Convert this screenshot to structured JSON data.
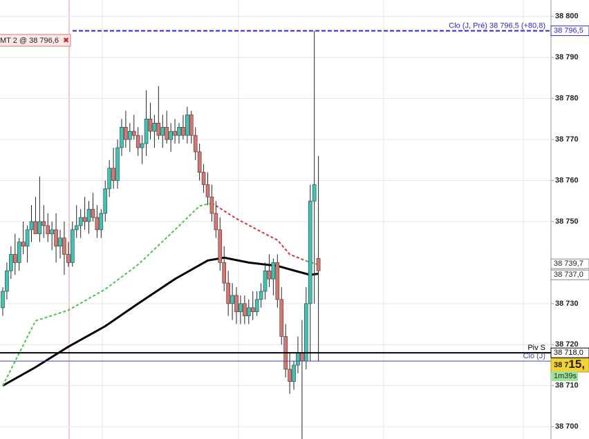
{
  "chart_data": {
    "type": "candlestick",
    "ylim": [
      38697,
      38804
    ],
    "yticks": [
      {
        "value": 38700,
        "label": "38 700"
      },
      {
        "value": 38710,
        "label": "38 710"
      },
      {
        "value": 38720,
        "label": "38 720"
      },
      {
        "value": 38730,
        "label": "38 730"
      },
      {
        "value": 38750,
        "label": "38 750"
      },
      {
        "value": 38760,
        "label": "38 760"
      },
      {
        "value": 38770,
        "label": "38 770"
      },
      {
        "value": 38780,
        "label": "38 780"
      },
      {
        "value": 38790,
        "label": "38 790"
      },
      {
        "value": 38800,
        "label": "38 800"
      }
    ],
    "grid": true,
    "up_color": "#3cc4b4",
    "down_color": "#d9756f",
    "candles": [
      [
        38729,
        38734,
        38727,
        38733
      ],
      [
        38733,
        38740,
        38731,
        38738
      ],
      [
        38738,
        38744,
        38736,
        38742
      ],
      [
        38742,
        38747,
        38737,
        38740
      ],
      [
        38740,
        38746,
        38738,
        38745
      ],
      [
        38745,
        38750,
        38742,
        38744
      ],
      [
        38744,
        38749,
        38740,
        38748
      ],
      [
        38748,
        38754,
        38745,
        38750
      ],
      [
        38750,
        38756,
        38747,
        38747
      ],
      [
        38747,
        38761,
        38745,
        38750
      ],
      [
        38750,
        38754,
        38746,
        38749
      ],
      [
        38749,
        38752,
        38745,
        38747
      ],
      [
        38747,
        38750,
        38743,
        38748
      ],
      [
        38748,
        38752,
        38740,
        38744
      ],
      [
        38744,
        38748,
        38741,
        38746
      ],
      [
        38746,
        38750,
        38737,
        38742
      ],
      [
        38742,
        38745,
        38739,
        38740
      ],
      [
        38740,
        38750,
        38739,
        38748
      ],
      [
        38748,
        38754,
        38746,
        38749
      ],
      [
        38749,
        38753,
        38746,
        38751
      ],
      [
        38751,
        38756,
        38748,
        38750
      ],
      [
        38750,
        38755,
        38747,
        38753
      ],
      [
        38753,
        38757,
        38750,
        38751
      ],
      [
        38751,
        38754,
        38746,
        38748
      ],
      [
        38748,
        38753,
        38746,
        38752
      ],
      [
        38752,
        38760,
        38750,
        38758
      ],
      [
        38758,
        38765,
        38756,
        38763
      ],
      [
        38763,
        38768,
        38758,
        38760
      ],
      [
        38760,
        38770,
        38758,
        38768
      ],
      [
        38768,
        38775,
        38766,
        38773
      ],
      [
        38773,
        38777,
        38768,
        38770
      ],
      [
        38770,
        38774,
        38767,
        38772
      ],
      [
        38772,
        38776,
        38770,
        38771
      ],
      [
        38771,
        38773,
        38766,
        38768
      ],
      [
        38768,
        38771,
        38764,
        38769
      ],
      [
        38769,
        38782,
        38766,
        38775
      ],
      [
        38775,
        38779,
        38770,
        38772
      ],
      [
        38772,
        38776,
        38768,
        38774
      ],
      [
        38774,
        38783,
        38770,
        38771
      ],
      [
        38771,
        38776,
        38768,
        38773
      ],
      [
        38773,
        38777,
        38769,
        38770
      ],
      [
        38770,
        38774,
        38767,
        38772
      ],
      [
        38772,
        38775,
        38769,
        38771
      ],
      [
        38771,
        38774,
        38769,
        38773
      ],
      [
        38773,
        38776,
        38770,
        38771
      ],
      [
        38771,
        38778,
        38769,
        38776
      ],
      [
        38776,
        38777,
        38769,
        38771
      ],
      [
        38771,
        38773,
        38765,
        38767
      ],
      [
        38767,
        38769,
        38760,
        38762
      ],
      [
        38762,
        38764,
        38757,
        38759
      ],
      [
        38759,
        38762,
        38754,
        38756
      ],
      [
        38756,
        38759,
        38750,
        38752
      ],
      [
        38752,
        38755,
        38746,
        38748
      ],
      [
        38748,
        38751,
        38738,
        38740
      ],
      [
        38740,
        38744,
        38733,
        38735
      ],
      [
        38735,
        38738,
        38727,
        38730
      ],
      [
        38730,
        38735,
        38726,
        38732
      ],
      [
        38732,
        38734,
        38725,
        38728
      ],
      [
        38728,
        38732,
        38725,
        38730
      ],
      [
        38730,
        38732,
        38725,
        38727
      ],
      [
        38727,
        38731,
        38725,
        38729
      ],
      [
        38729,
        38733,
        38726,
        38728
      ],
      [
        38728,
        38733,
        38727,
        38731
      ],
      [
        38731,
        38735,
        38729,
        38733
      ],
      [
        38733,
        38740,
        38731,
        38738
      ],
      [
        38738,
        38742,
        38734,
        38736
      ],
      [
        38736,
        38741,
        38732,
        38740
      ],
      [
        38740,
        38742,
        38729,
        38731
      ],
      [
        38731,
        38734,
        38720,
        38722
      ],
      [
        38722,
        38725,
        38712,
        38714
      ],
      [
        38714,
        38718,
        38708,
        38711
      ],
      [
        38711,
        38716,
        38709,
        38715
      ],
      [
        38715,
        38722,
        38713,
        38718
      ],
      [
        38718,
        38726,
        38697,
        38716
      ],
      [
        38716,
        38734,
        38714,
        38730
      ],
      [
        38730,
        38759,
        38716,
        38755
      ],
      [
        38755,
        38796.5,
        38730,
        38759
      ],
      [
        38741,
        38766,
        38716,
        38738
      ]
    ],
    "averages": [
      {
        "color": "#000000",
        "dashed": false,
        "x": [
          0,
          8,
          16,
          25,
          33,
          42,
          50,
          54,
          60,
          67,
          72,
          75,
          77
        ],
        "values": [
          38710,
          38714.5,
          38719.5,
          38724.5,
          38730,
          38736,
          38740.5,
          38741.2,
          38740,
          38739.2,
          38737.8,
          38737,
          38737.3
        ]
      },
      {
        "color": "#44c844",
        "dashed": true,
        "x": [
          0,
          8,
          16,
          25,
          33,
          42,
          48,
          51,
          null,
          74,
          77
        ],
        "values": [
          38710,
          38725.8,
          38728.4,
          38733.5,
          38739.5,
          38748,
          38753.8,
          38754.5,
          null,
          38740.4,
          38739.5
        ]
      },
      {
        "color": "#dd3333",
        "dashed": true,
        "x": [
          51,
          57,
          64,
          67,
          70,
          74
        ],
        "values": [
          38754.5,
          38750.7,
          38747,
          38745.5,
          38742,
          38740.4
        ]
      }
    ],
    "levels": [
      {
        "value": 38796.5,
        "label": "38 796,5",
        "name": "Clo (J, Pré) 38 796,5 (+80,8)",
        "color": "#2a2acc",
        "style": "dashed"
      },
      {
        "value": 38718.0,
        "label": "38 718,0",
        "name": "Piv S",
        "color": "#000000",
        "style": "solid"
      },
      {
        "value": 38716.0,
        "name": "Clo (J)",
        "color": "#4444aa",
        "style": "thin"
      }
    ],
    "price_tags": [
      {
        "value": 38739.7,
        "label": "38 739,7"
      },
      {
        "value": 38737.0,
        "label": "38 737,0"
      }
    ],
    "current": {
      "value": 38715,
      "label_prefix": "38 7",
      "label_main": "15,",
      "timer": "1m39s"
    },
    "order": {
      "label": "MT 2 @ 38 796,6",
      "close_icon": "✖"
    }
  }
}
